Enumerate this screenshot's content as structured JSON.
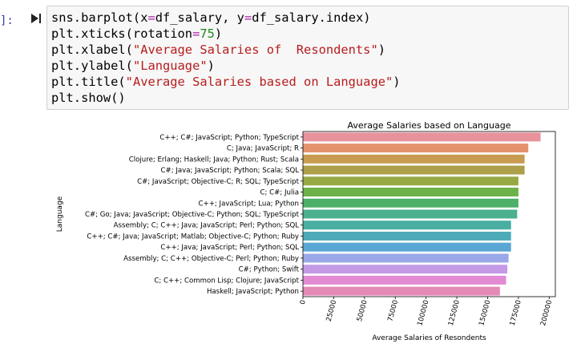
{
  "cell": {
    "prompt": "]:",
    "lines": [
      [
        {
          "t": "sns.barplot(x"
        },
        {
          "t": "=",
          "c": "op"
        },
        {
          "t": "df_salary, y"
        },
        {
          "t": "=",
          "c": "op"
        },
        {
          "t": "df_salary.index)"
        }
      ],
      [
        {
          "t": "plt.xticks(rotation"
        },
        {
          "t": "=",
          "c": "op"
        },
        {
          "t": "75",
          "c": "num"
        },
        {
          "t": ")"
        }
      ],
      [
        {
          "t": "plt.xlabel("
        },
        {
          "t": "\"Average Salaries of  Resondents\"",
          "c": "str"
        },
        {
          "t": ")"
        }
      ],
      [
        {
          "t": "plt.ylabel("
        },
        {
          "t": "\"Language\"",
          "c": "str"
        },
        {
          "t": ")"
        }
      ],
      [
        {
          "t": "plt.title("
        },
        {
          "t": "\"Average Salaries based on Language\"",
          "c": "str"
        },
        {
          "t": ")"
        }
      ],
      [
        {
          "t": "plt.show()"
        }
      ]
    ]
  },
  "chart_data": {
    "type": "bar",
    "orientation": "horizontal",
    "title": "Average Salaries based on Language",
    "xlabel": "Average Salaries of  Resondents",
    "ylabel": "Language",
    "xlim": [
      0,
      205000
    ],
    "xticks": [
      0,
      25000,
      50000,
      75000,
      100000,
      125000,
      150000,
      175000,
      200000
    ],
    "xtick_labels": [
      "0",
      "25000",
      "50000",
      "75000",
      "100000",
      "125000",
      "150000",
      "175000",
      "200000"
    ],
    "xtick_rotation": 75,
    "grid": false,
    "categories": [
      "C++; C#; JavaScript; Python; TypeScript",
      "C; Java; JavaScript; R",
      "Clojure; Erlang; Haskell; Java; Python; Rust; Scala",
      "C#; Java; JavaScript; Python; Scala; SQL",
      "C#; JavaScript; Objective-C; R; SQL; TypeScript",
      "C; C#; Julia",
      "C++; JavaScript; Lua; Python",
      "C#; Go; Java; JavaScript; Objective-C; Python; SQL; TypeScript",
      "Assembly; C; C++; Java; JavaScript; Perl; Python; SQL",
      "C++; C#; Java; JavaScript; Matlab; Objective-C; Python; Ruby",
      "C++; Java; JavaScript; Perl; Python; SQL",
      "Assembly; C; C++; Objective-C; Perl; Python; Ruby",
      "C#; Python; Swift",
      "C; C++; Common Lisp; Clojure; JavaScript",
      "Haskell; JavaScript; Python"
    ],
    "values": [
      193000,
      183000,
      180000,
      180000,
      175000,
      175000,
      175000,
      174000,
      169000,
      169000,
      169000,
      167000,
      166000,
      165000,
      160000
    ],
    "colors": [
      "#e8929c",
      "#e4926e",
      "#c89c50",
      "#ad9e48",
      "#97a944",
      "#6cb248",
      "#4cb068",
      "#4ab08e",
      "#4aaea2",
      "#4cabb6",
      "#5aa6d4",
      "#9aa8e8",
      "#c49ae6",
      "#e28ad4",
      "#e48ab6"
    ]
  }
}
